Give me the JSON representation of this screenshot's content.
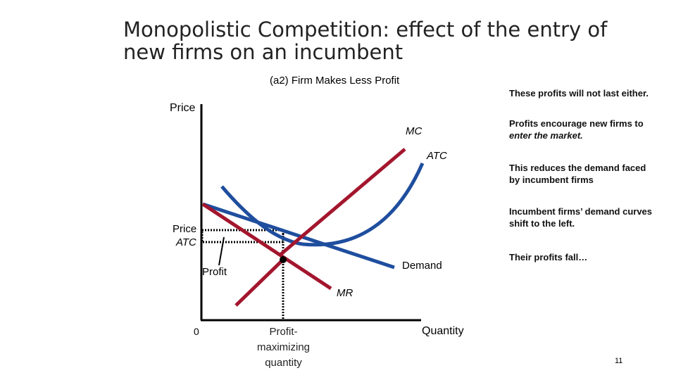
{
  "slide": {
    "title_line1": "Monopolistic Competition: effect of the entry of",
    "title_line2": "new firms on an incumbent",
    "panel_title": "(a2) Firm Makes Less Profit",
    "page_number": "11"
  },
  "axes": {
    "y_label": "Price",
    "x_label": "Quantity",
    "origin": "0"
  },
  "curves": {
    "mc": "MC",
    "atc": "ATC",
    "demand": "Demand",
    "mr": "MR"
  },
  "markers": {
    "price_label": "Price",
    "atc_label": "ATC",
    "profit_label": "Profit",
    "quantity_line1": "Profit-",
    "quantity_line2": "maximizing",
    "quantity_line3": "quantity"
  },
  "notes": {
    "note1": "These profits will not last either.",
    "note2_line1": "Profits encourage new firms to",
    "note2_line2": "enter the market.",
    "note3_line1": "This reduces the demand faced",
    "note3_line2": "by incumbent firms",
    "note4_line1": "Incumbent firms’ demand curves",
    "note4_line2": "shift to the left.",
    "note5": "Their profits fall…"
  },
  "colors": {
    "red_curve": "#a3162d",
    "blue_curve": "#1f4e9e",
    "axis": "#000000"
  }
}
